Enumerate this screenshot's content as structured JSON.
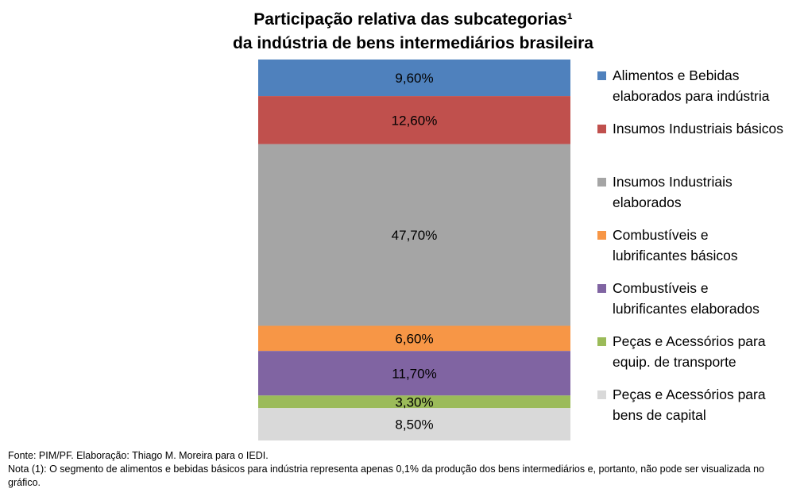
{
  "chart_data": {
    "type": "bar",
    "stacked": true,
    "title_lines": [
      "Participação relativa das subcategorias¹",
      "da indústria de bens intermediários brasileira"
    ],
    "series": [
      {
        "name": "Alimentos e Bebidas elaborados para indústria",
        "value": 9.6,
        "label": "9,60%",
        "color": "#4F81BD",
        "legend_lines": "Alimentos e Bebidas\nelaborados para indústria"
      },
      {
        "name": "Insumos Industriais básicos",
        "value": 12.6,
        "label": "12,60%",
        "color": "#C0504D",
        "legend_lines": "Insumos Industriais básicos"
      },
      {
        "name": "Insumos Industriais elaborados",
        "value": 47.7,
        "label": "47,70%",
        "color": "#A5A5A5",
        "legend_lines": "Insumos Industriais\nelaborados"
      },
      {
        "name": "Combustíveis e lubrificantes básicos",
        "value": 6.6,
        "label": "6,60%",
        "color": "#F79646",
        "legend_lines": "Combustíveis e\nlubrificantes básicos"
      },
      {
        "name": "Combustíveis e lubrificantes elaborados",
        "value": 11.7,
        "label": "11,70%",
        "color": "#8064A2",
        "legend_lines": "Combustíveis e\nlubrificantes elaborados"
      },
      {
        "name": "Peças e Acessórios para equip. de transporte",
        "value": 3.3,
        "label": "3,30%",
        "color": "#9BBB59",
        "legend_lines": "Peças e Acessórios para\nequip. de transporte"
      },
      {
        "name": "Peças e Acessórios para bens de capital",
        "value": 8.5,
        "label": "8,50%",
        "color": "#D9D9D9",
        "legend_lines": "Peças e Acessórios para\nbens de capital"
      }
    ],
    "legend_position": "right",
    "grid": false
  },
  "notes": {
    "source": "Fonte: PIM/PF. Elaboração: Thiago M. Moreira para o IEDI.",
    "footnote": "Nota (1): O segmento de alimentos e bebidas básicos para indústria representa apenas 0,1% da produção dos bens intermediários e, portanto, não pode ser visualizada no gráfico."
  }
}
